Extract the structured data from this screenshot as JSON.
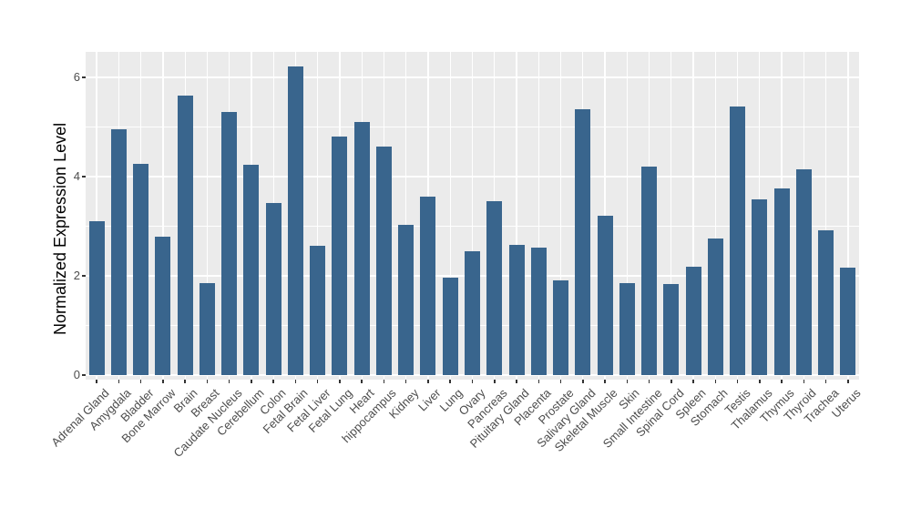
{
  "chart_data": {
    "type": "bar",
    "title": "",
    "xlabel": "",
    "ylabel": "Normalized Expression Level",
    "ylim": [
      0,
      6.5
    ],
    "yticks_major": [
      0,
      2,
      4,
      6
    ],
    "yticks_minor": [
      1,
      3,
      5
    ],
    "grid": "on",
    "legend": "none",
    "panel_bg": "#EBEBEB",
    "grid_color": "#FFFFFF",
    "bar_color": "#39658D",
    "tick_label_color": "#4D4D4D",
    "categories": [
      "Adrenal Gland",
      "Amygdala",
      "Bladder",
      "Bone Marrow",
      "Brain",
      "Breast",
      "Caudate Nucleus",
      "Cerebellum",
      "Colon",
      "Fetal Brain",
      "Fetal Liver",
      "Fetal Lung",
      "Heart",
      "hippocampus",
      "Kidney",
      "Liver",
      "Lung",
      "Ovary",
      "Pancreas",
      "Pituitary Gland",
      "Placenta",
      "Prostate",
      "Salivary Gland",
      "Skeletal Muscle",
      "Skin",
      "Small Intestine",
      "Spinal Cord",
      "Spleen",
      "Stomach",
      "Testis",
      "Thalamus",
      "Thymus",
      "Thyroid",
      "Trachea",
      "Uterus"
    ],
    "values": [
      3.1,
      4.95,
      4.25,
      2.79,
      5.63,
      1.86,
      5.3,
      4.23,
      3.46,
      6.22,
      2.61,
      4.8,
      5.11,
      4.6,
      3.03,
      3.6,
      1.97,
      2.5,
      3.5,
      2.62,
      2.56,
      1.9,
      5.35,
      3.22,
      1.86,
      4.2,
      1.83,
      2.18,
      2.75,
      5.42,
      3.55,
      3.77,
      4.15,
      2.92,
      2.16
    ]
  }
}
